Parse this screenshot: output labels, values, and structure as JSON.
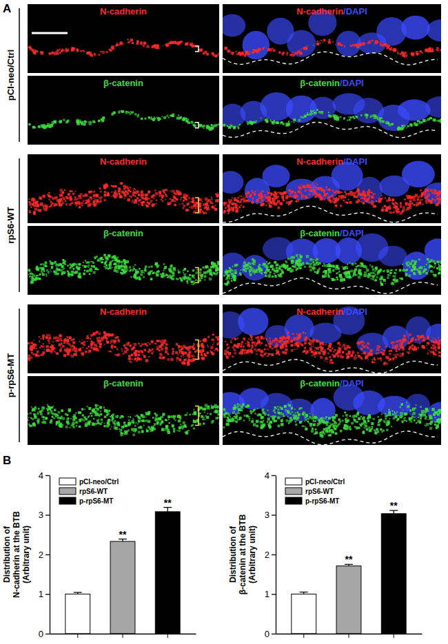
{
  "figure": {
    "panel_a": {
      "label": "A",
      "dapi_color": "#3b4bff",
      "groups": [
        {
          "name": "pCI-neo/Ctrl",
          "rows": [
            {
              "stain": "N-cadherin",
              "merge": [
                "N-cadherin",
                "/DAPI"
              ],
              "color": "#ff2a2a"
            },
            {
              "stain": "β-catenin",
              "merge": [
                "β-catenin",
                "/DAPI"
              ],
              "color": "#3ddc3d"
            }
          ]
        },
        {
          "name": "rpS6-WT",
          "rows": [
            {
              "stain": "N-cadherin",
              "merge": [
                "N-cadherin",
                "/DAPI"
              ],
              "color": "#ff2a2a"
            },
            {
              "stain": "β-catenin",
              "merge": [
                "β-catenin",
                "/DAPI"
              ],
              "color": "#3ddc3d"
            }
          ]
        },
        {
          "name": "p-rpS6-MT",
          "rows": [
            {
              "stain": "N-cadherin",
              "merge": [
                "N-cadherin",
                "/DAPI"
              ],
              "color": "#ff2a2a"
            },
            {
              "stain": "β-catenin",
              "merge": [
                "β-catenin",
                "/DAPI"
              ],
              "color": "#3ddc3d"
            }
          ]
        }
      ]
    },
    "panel_b": {
      "label": "B"
    }
  },
  "chart_data": [
    {
      "type": "bar",
      "ylabel": [
        "Distribution of",
        "N-cadherin at the BTB",
        "(Arbitrary unit)"
      ],
      "categories": [
        "pCI-neo/Ctrl",
        "rpS6-WT",
        "p-rpS6-MT"
      ],
      "values": [
        1.0,
        2.33,
        3.08
      ],
      "errors": [
        0.04,
        0.06,
        0.11
      ],
      "colors": [
        "#ffffff",
        "#a6a6a6",
        "#000000"
      ],
      "annotations": [
        {
          "category": "rpS6-WT",
          "text": "**"
        },
        {
          "category": "p-rpS6-MT",
          "text": "**"
        }
      ],
      "ylim": [
        0,
        4
      ],
      "yticks": [
        0,
        1,
        2,
        3,
        4
      ],
      "legend": "top-left",
      "tick_labels": "y"
    },
    {
      "type": "bar",
      "ylabel": [
        "Distribution of",
        "β-catenin at the BTB",
        "(Arbitrary unit)"
      ],
      "categories": [
        "pCI-neo/Ctrl",
        "rpS6-WT",
        "p-rpS6-MT"
      ],
      "values": [
        1.0,
        1.71,
        3.03
      ],
      "errors": [
        0.05,
        0.04,
        0.08
      ],
      "colors": [
        "#ffffff",
        "#a6a6a6",
        "#000000"
      ],
      "annotations": [
        {
          "category": "rpS6-WT",
          "text": "**"
        },
        {
          "category": "p-rpS6-MT",
          "text": "**"
        }
      ],
      "ylim": [
        0,
        4
      ],
      "yticks": [
        0,
        1,
        2,
        3,
        4
      ],
      "legend": "top-left",
      "tick_labels": "y"
    }
  ]
}
